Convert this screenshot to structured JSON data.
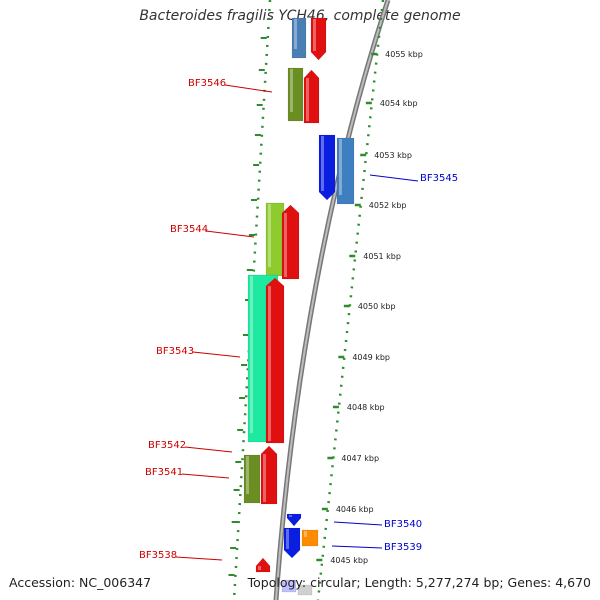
{
  "title": "Bacteroides fragilis YCH46, complete genome",
  "footer": {
    "accession": "Accession: NC_006347",
    "topology": "Topology: circular; Length: 5,277,274 bp; Genes: 4,670"
  },
  "colors": {
    "backbone": "#888888",
    "dots": "#2e8b2e",
    "label_left": "#cc0000",
    "label_right": "#0000cc"
  },
  "kbp_ticks": [
    "4055 kbp",
    "4054 kbp",
    "4053 kbp",
    "4052 kbp",
    "4051 kbp",
    "4050 kbp",
    "4049 kbp",
    "4048 kbp",
    "4047 kbp",
    "4046 kbp",
    "4045 kbp"
  ],
  "gene_labels": [
    {
      "text": "BF3546",
      "side": "left"
    },
    {
      "text": "BF3545",
      "side": "right"
    },
    {
      "text": "BF3544",
      "side": "left"
    },
    {
      "text": "BF3543",
      "side": "left"
    },
    {
      "text": "BF3542",
      "side": "left"
    },
    {
      "text": "BF3541",
      "side": "left"
    },
    {
      "text": "BF3540",
      "side": "right"
    },
    {
      "text": "BF3539",
      "side": "right"
    },
    {
      "text": "BF3538",
      "side": "left"
    }
  ]
}
